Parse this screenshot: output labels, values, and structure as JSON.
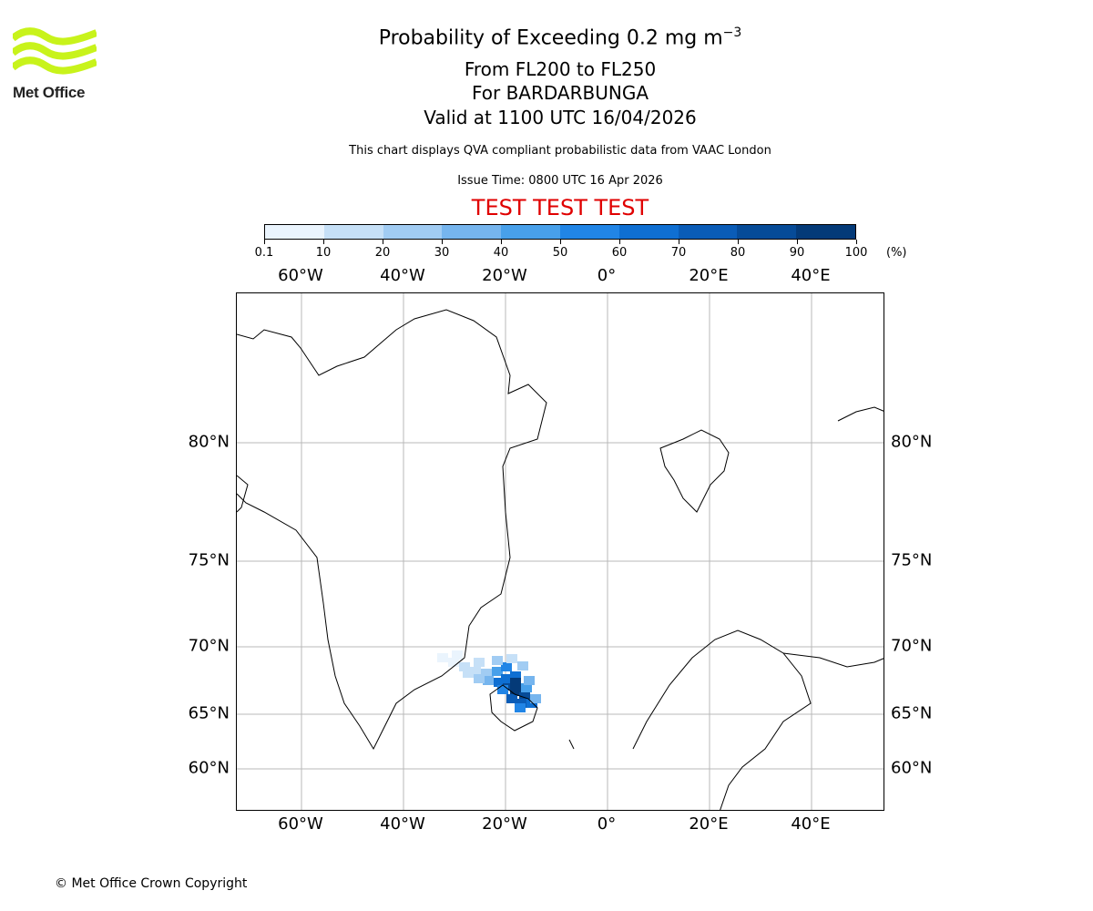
{
  "brand": {
    "logo_text": "Met Office",
    "logo_color": "#c8f31b"
  },
  "header": {
    "title": "Probability of Exceeding 0.2 mg m",
    "title_superscript": "−3",
    "level_range": "From FL200 to FL250",
    "volcano": "For BARDARBUNGA",
    "valid_time": "Valid at 1100 UTC 16/04/2026",
    "description": "This chart displays QVA compliant probabilistic data from VAAC London",
    "issue_time": "Issue Time: 0800 UTC 16 Apr 2026",
    "test_banner": "TEST TEST TEST",
    "test_color": "#e00000"
  },
  "colorbar": {
    "ticks": [
      "0.1",
      "10",
      "20",
      "30",
      "40",
      "50",
      "60",
      "70",
      "80",
      "90",
      "100"
    ],
    "unit": "(%)",
    "colors": [
      "#eaf4fd",
      "#c6e0f7",
      "#a1ccf3",
      "#76b5ee",
      "#48a0ea",
      "#2185e6",
      "#0f6fd2",
      "#0a5cb7",
      "#064b98",
      "#043a78",
      "#022858"
    ]
  },
  "map": {
    "lon_labels": [
      "60°W",
      "40°W",
      "20°W",
      "0°",
      "20°E",
      "40°E"
    ],
    "lat_labels": [
      "80°N",
      "75°N",
      "70°N",
      "65°N",
      "60°N"
    ],
    "grid_color": "#b8b8b8"
  },
  "footer": {
    "copyright": "© Met Office Crown Copyright"
  }
}
